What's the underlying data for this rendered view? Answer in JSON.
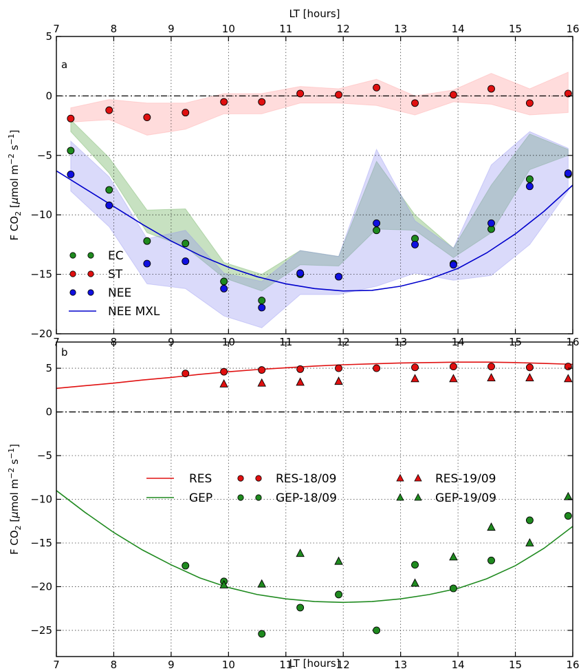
{
  "chart_data": [
    {
      "panel": "a",
      "type": "scatter",
      "xlabel_top": "LT [hours]",
      "ylabel": "F CO2 [μmol m⁻² s⁻¹]",
      "xlim": [
        7,
        16
      ],
      "ylim": [
        -20,
        5
      ],
      "xticks": [
        7,
        8,
        9,
        10,
        11,
        12,
        13,
        14,
        15,
        16
      ],
      "yticks": [
        -20,
        -15,
        -10,
        -5,
        0,
        5
      ],
      "grid": true,
      "legend_position": "lower-left",
      "colors": {
        "EC": "#1f8a1f",
        "ST": "#e01010",
        "NEE": "#1010e0",
        "NEE MXL": "#0000cc"
      },
      "series": [
        {
          "name": "EC",
          "kind": "points",
          "x": [
            7.25,
            7.92,
            8.58,
            9.25,
            9.92,
            10.58,
            11.25,
            11.92,
            12.58,
            13.25,
            13.92,
            14.58,
            15.25,
            15.92
          ],
          "y": [
            -4.6,
            -7.9,
            -12.2,
            -12.4,
            -15.6,
            -17.2,
            -15.0,
            -15.2,
            -11.3,
            -12.0,
            -14.1,
            -11.2,
            -7.0,
            -6.6
          ],
          "band_lower": [
            -3.0,
            -6.5,
            -11.5,
            -12.7,
            -15.3,
            -16.4,
            -14.2,
            -14.3,
            -11.2,
            -11.3,
            -13.6,
            -11.5,
            -6.2,
            -5.0
          ],
          "band_upper": [
            -2.0,
            -5.2,
            -9.6,
            -9.5,
            -14.0,
            -15.0,
            -13.0,
            -13.5,
            -5.5,
            -10.0,
            -12.8,
            -7.5,
            -3.2,
            -4.5
          ]
        },
        {
          "name": "ST",
          "kind": "points",
          "x": [
            7.25,
            7.92,
            8.58,
            9.25,
            9.92,
            10.58,
            11.25,
            11.92,
            12.58,
            13.25,
            13.92,
            14.58,
            15.25,
            15.92
          ],
          "y": [
            -1.9,
            -1.2,
            -1.8,
            -1.4,
            -0.5,
            -0.5,
            0.2,
            0.1,
            0.7,
            -0.6,
            0.1,
            0.6,
            -0.6,
            0.2
          ],
          "band_lower": [
            -2.2,
            -2.0,
            -3.3,
            -2.8,
            -1.5,
            -1.5,
            -0.6,
            -0.6,
            -0.8,
            -1.6,
            -0.5,
            -0.7,
            -1.6,
            -1.4
          ],
          "band_upper": [
            -1.0,
            -0.3,
            -0.6,
            -0.6,
            0.2,
            0.2,
            0.8,
            0.6,
            1.4,
            0.0,
            0.5,
            1.9,
            0.6,
            2.0
          ]
        },
        {
          "name": "NEE",
          "kind": "points",
          "x": [
            7.25,
            7.92,
            8.58,
            9.25,
            9.92,
            10.58,
            11.25,
            11.92,
            12.58,
            13.25,
            13.92,
            14.58,
            15.25,
            15.92
          ],
          "y": [
            -6.6,
            -9.2,
            -14.1,
            -13.9,
            -16.2,
            -17.8,
            -14.9,
            -15.2,
            -10.7,
            -12.5,
            -14.2,
            -10.7,
            -7.6,
            -6.5
          ],
          "band_lower": [
            -8.0,
            -11.0,
            -15.8,
            -16.2,
            -18.5,
            -19.5,
            -16.7,
            -16.7,
            -16.0,
            -14.9,
            -15.5,
            -15.1,
            -12.5,
            -8.0
          ],
          "band_upper": [
            -3.8,
            -6.8,
            -12.0,
            -11.3,
            -14.9,
            -15.6,
            -13.0,
            -13.5,
            -4.5,
            -10.5,
            -12.8,
            -5.8,
            -3.0,
            -4.4
          ]
        },
        {
          "name": "NEE MXL",
          "kind": "line",
          "x": [
            7,
            7.5,
            8,
            8.5,
            9,
            9.5,
            10,
            10.5,
            11,
            11.5,
            12,
            12.5,
            13,
            13.5,
            14,
            14.5,
            15,
            15.5,
            16
          ],
          "y": [
            -6.3,
            -7.8,
            -9.3,
            -10.8,
            -12.2,
            -13.4,
            -14.4,
            -15.2,
            -15.8,
            -16.2,
            -16.4,
            -16.35,
            -16.0,
            -15.4,
            -14.5,
            -13.2,
            -11.6,
            -9.7,
            -7.5
          ]
        }
      ],
      "zero_line": true,
      "panel_label": "a"
    },
    {
      "panel": "b",
      "type": "scatter",
      "xlabel": "LT [hours]",
      "ylabel": "F CO2 [μmol m⁻² s⁻¹]",
      "xlim": [
        7,
        16
      ],
      "ylim": [
        -28,
        8
      ],
      "xticks": [
        7,
        8,
        9,
        10,
        11,
        12,
        13,
        14,
        15,
        16
      ],
      "yticks": [
        -25,
        -20,
        -15,
        -10,
        -5,
        0,
        5
      ],
      "grid": true,
      "legend_position": "center",
      "colors": {
        "RES": "#e01010",
        "GEP": "#1f8a1f"
      },
      "series": [
        {
          "name": "RES",
          "kind": "line",
          "x": [
            7,
            7.5,
            8,
            8.5,
            9,
            9.5,
            10,
            10.5,
            11,
            11.5,
            12,
            12.5,
            13,
            13.5,
            14,
            14.5,
            15,
            15.5,
            16
          ],
          "y": [
            2.7,
            3.0,
            3.3,
            3.65,
            3.95,
            4.3,
            4.6,
            4.85,
            5.05,
            5.25,
            5.4,
            5.5,
            5.6,
            5.65,
            5.7,
            5.7,
            5.65,
            5.55,
            5.45
          ]
        },
        {
          "name": "GEP",
          "kind": "line",
          "x": [
            7,
            7.5,
            8,
            8.5,
            9,
            9.5,
            10,
            10.5,
            11,
            11.5,
            12,
            12.5,
            13,
            13.5,
            14,
            14.5,
            15,
            15.5,
            16
          ],
          "y": [
            -9.0,
            -11.5,
            -13.8,
            -15.8,
            -17.5,
            -19.0,
            -20.1,
            -20.9,
            -21.4,
            -21.7,
            -21.8,
            -21.7,
            -21.4,
            -20.9,
            -20.2,
            -19.1,
            -17.6,
            -15.6,
            -13.1
          ]
        },
        {
          "name": "RES-18/09",
          "kind": "circles",
          "x": [
            9.25,
            9.92,
            10.58,
            11.25,
            11.92,
            12.58,
            13.25,
            13.92,
            14.58,
            15.25,
            15.92
          ],
          "y": [
            4.4,
            4.6,
            4.8,
            4.9,
            5.0,
            5.0,
            5.1,
            5.2,
            5.2,
            5.1,
            5.2
          ]
        },
        {
          "name": "RES-19/09",
          "kind": "triangles",
          "x": [
            9.92,
            10.58,
            11.25,
            11.92,
            13.25,
            13.92,
            14.58,
            15.25,
            15.92
          ],
          "y": [
            3.2,
            3.3,
            3.4,
            3.5,
            3.8,
            3.8,
            3.9,
            3.9,
            3.8
          ]
        },
        {
          "name": "GEP-18/09",
          "kind": "circles",
          "x": [
            9.25,
            9.92,
            10.58,
            11.25,
            11.92,
            12.58,
            13.25,
            13.92,
            14.58,
            15.25,
            15.92
          ],
          "y": [
            -17.6,
            -19.4,
            -25.4,
            -22.4,
            -20.9,
            -25.0,
            -17.5,
            -20.2,
            -17.0,
            -12.4,
            -11.9
          ]
        },
        {
          "name": "GEP-19/09",
          "kind": "triangles",
          "x": [
            9.92,
            10.58,
            11.25,
            11.92,
            13.25,
            13.92,
            14.58,
            15.25,
            15.92
          ],
          "y": [
            -19.8,
            -19.7,
            -16.2,
            -17.1,
            -19.6,
            -16.6,
            -13.2,
            -15.0,
            -9.7
          ]
        }
      ],
      "zero_line": true,
      "panel_label": "b"
    }
  ],
  "legend_a": [
    "EC",
    "ST",
    "NEE",
    "NEE MXL"
  ],
  "legend_b": [
    "RES",
    "RES-18/09",
    "RES-19/09",
    "GEP",
    "GEP-18/09",
    "GEP-19/09"
  ]
}
